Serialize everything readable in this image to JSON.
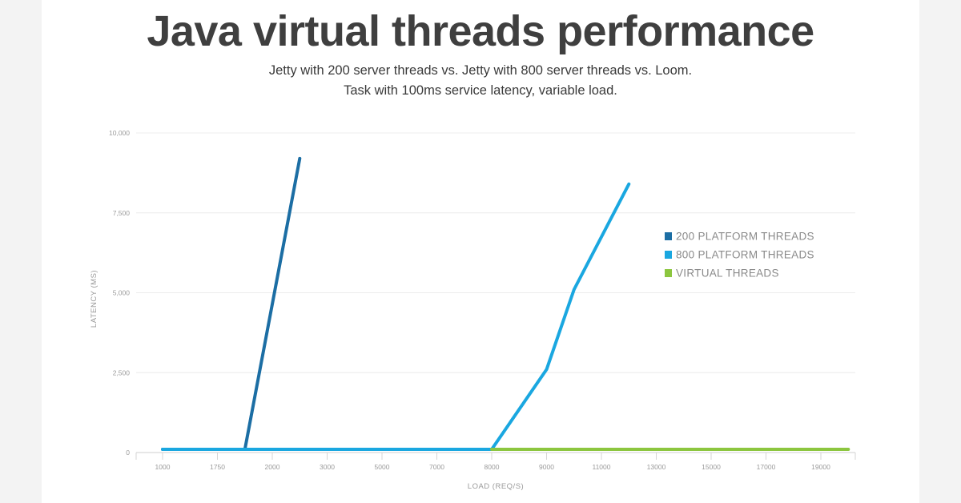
{
  "header": {
    "title": "Java virtual threads performance",
    "subtitle_line1": "Jetty with 200 server threads vs. Jetty with 800 server threads vs. Loom.",
    "subtitle_line2": "Task with 100ms service latency, variable load."
  },
  "chart_data": {
    "type": "line",
    "xlabel": "LOAD (REQ/S)",
    "ylabel": "LATENCY (MS)",
    "x_categories": [
      "1000",
      "1750",
      "2000",
      "3000",
      "5000",
      "7000",
      "8000",
      "9000",
      "11000",
      "13000",
      "15000",
      "17000",
      "19000"
    ],
    "y_ticks": [
      0,
      2500,
      5000,
      7500,
      10000
    ],
    "y_tick_labels": [
      "0",
      "2,500",
      "5,000",
      "7,500",
      "10,000"
    ],
    "ylim": [
      0,
      10000
    ],
    "grid": true,
    "legend_position": "right",
    "series": [
      {
        "name": "200 PLATFORM THREADS",
        "color": "#1c6ea4",
        "points": [
          [
            0,
            100
          ],
          [
            1.5,
            100
          ],
          [
            2.5,
            9200
          ]
        ]
      },
      {
        "name": "800 PLATFORM THREADS",
        "color": "#1aa7e0",
        "points": [
          [
            0,
            100
          ],
          [
            6.0,
            100
          ],
          [
            7.0,
            2600
          ],
          [
            7.5,
            5100
          ],
          [
            8.5,
            8400
          ]
        ]
      },
      {
        "name": "VIRTUAL THREADS",
        "color": "#8cc63f",
        "points": [
          [
            6.0,
            100
          ],
          [
            12.5,
            100
          ]
        ]
      }
    ]
  }
}
